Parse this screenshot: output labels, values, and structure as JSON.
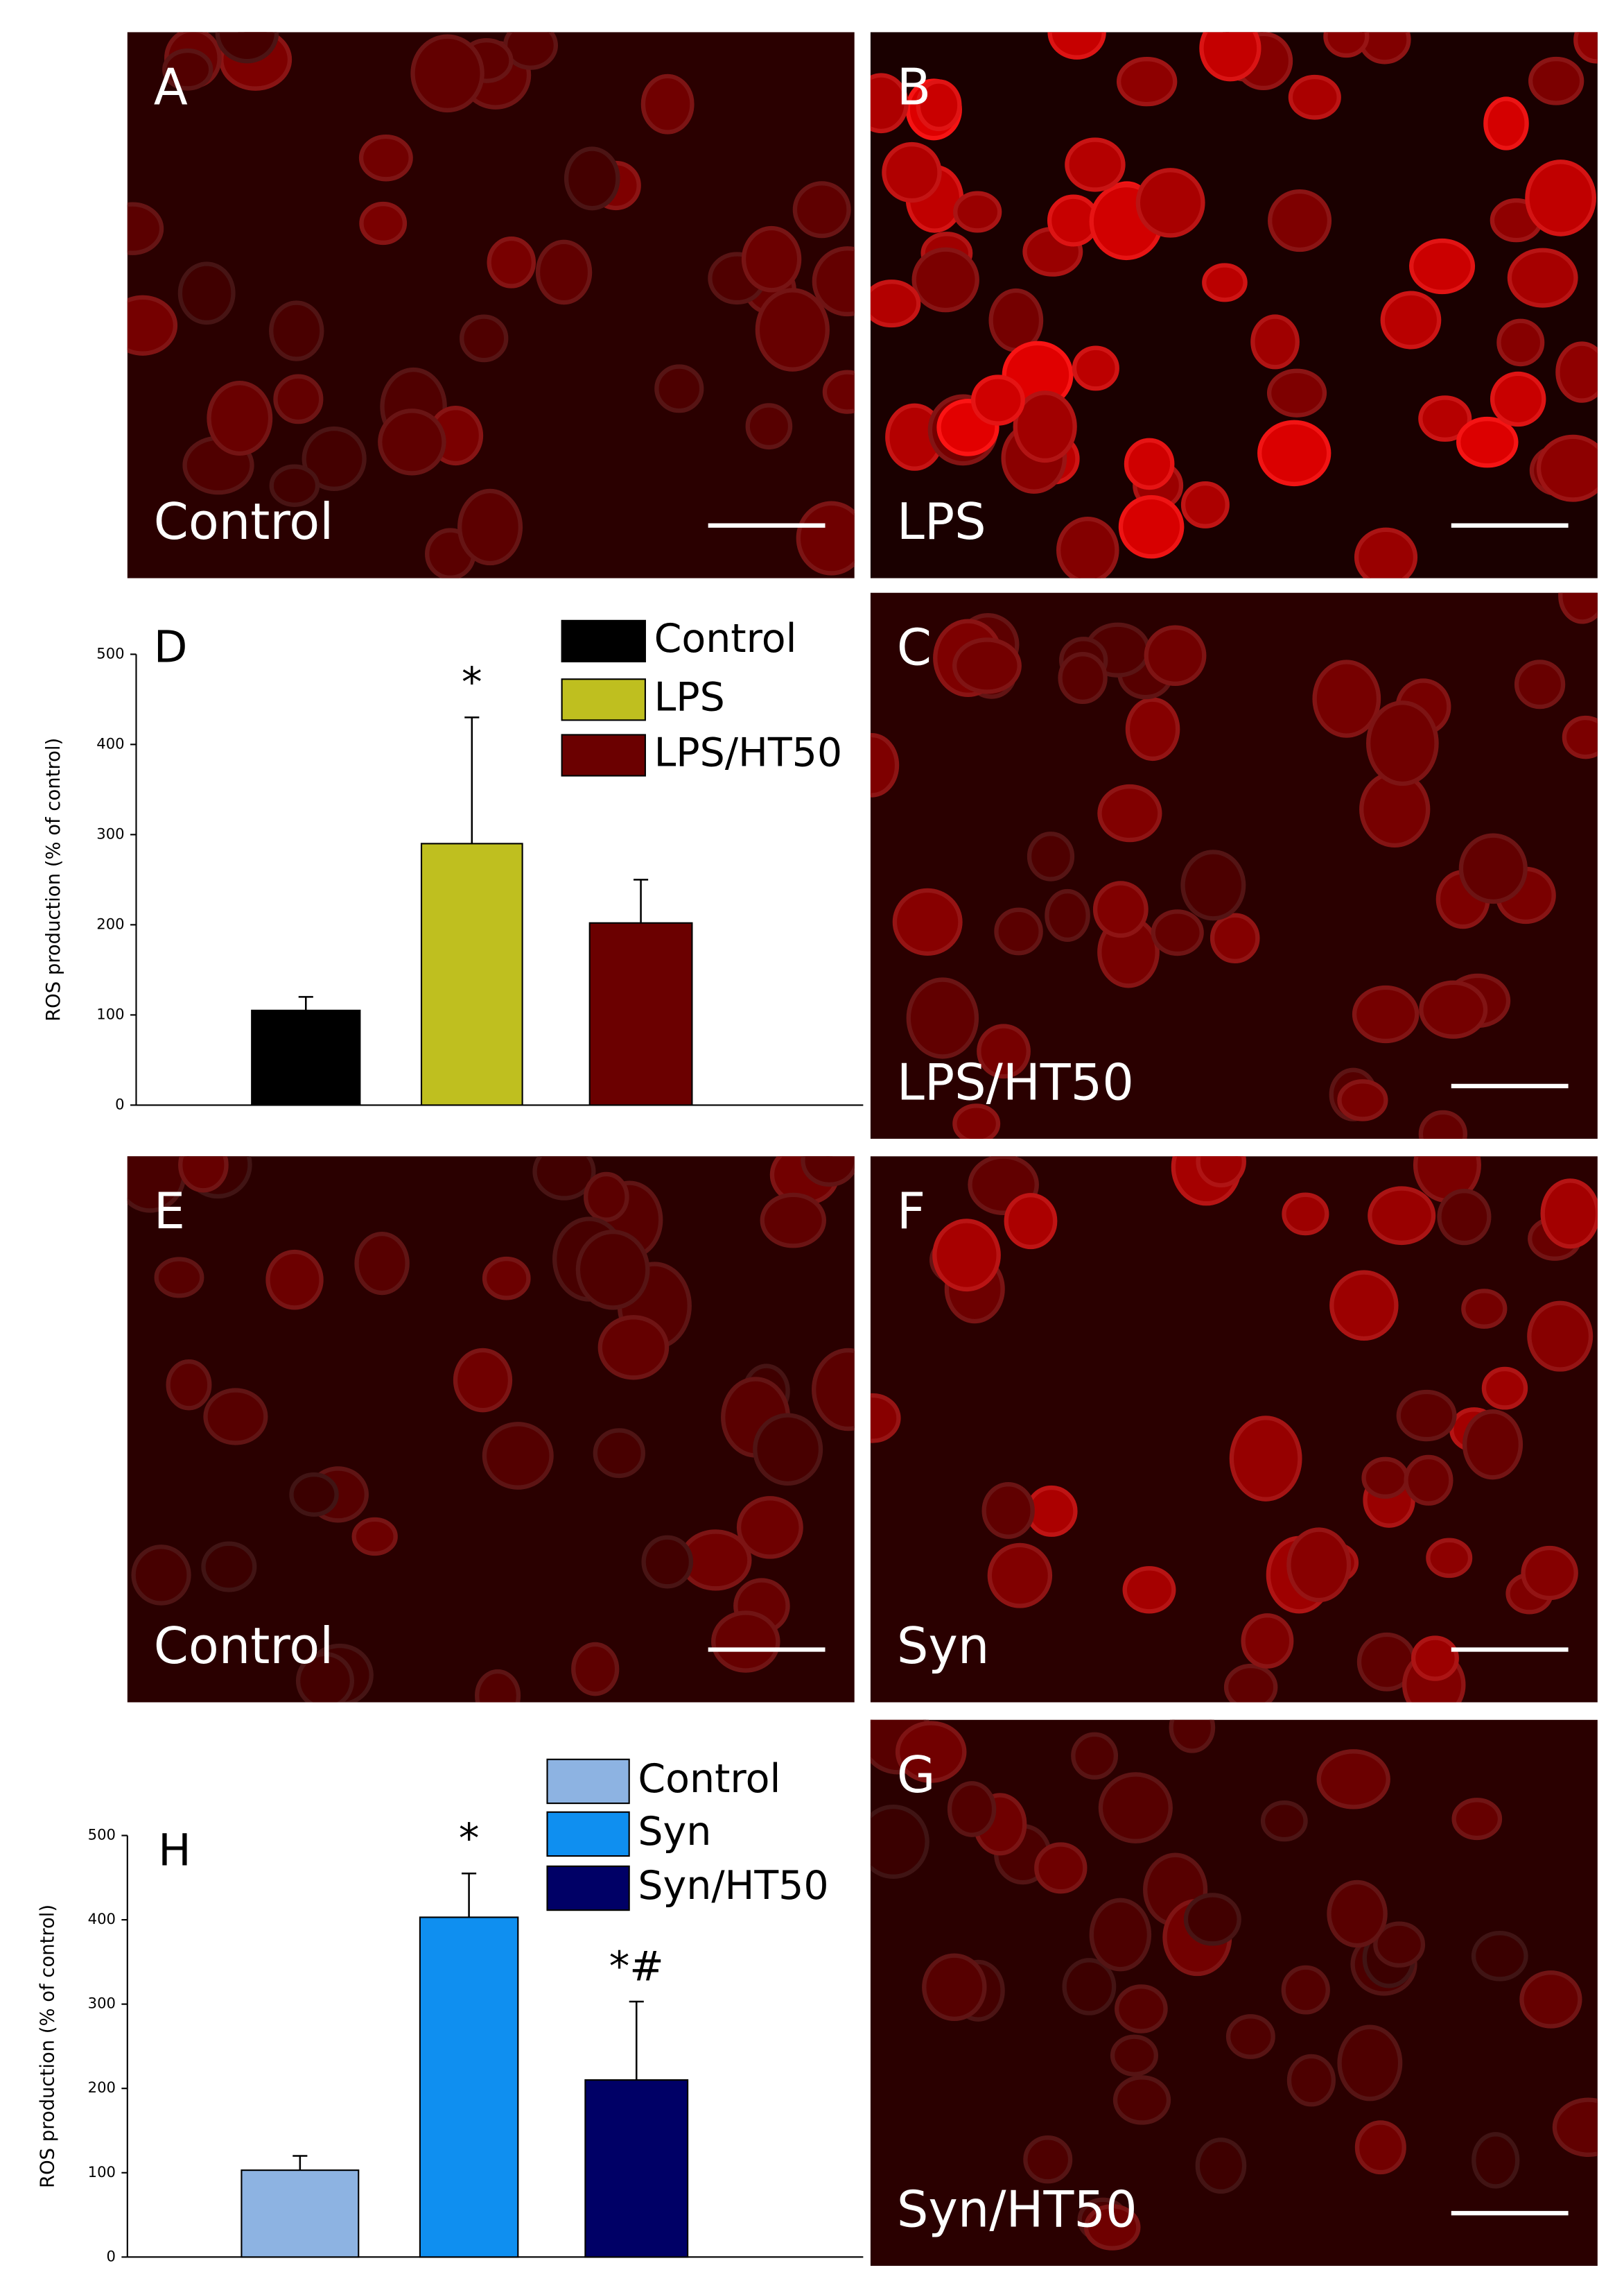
{
  "panels": [
    {
      "letter": "A",
      "label": "Control"
    },
    {
      "letter": "B",
      "label": "LPS"
    },
    {
      "letter": "C",
      "label": "LPS/HT50"
    },
    {
      "letter": "E",
      "label": "Control"
    },
    {
      "letter": "F",
      "label": "Syn"
    },
    {
      "letter": "G",
      "label": "Syn/HT50"
    }
  ],
  "chart_data": [
    {
      "type": "bar",
      "panel_label": "D",
      "y_label": "ROS production (% of control)",
      "categories": [
        "Control",
        "LPS",
        "LPS/HT50"
      ],
      "values": [
        105,
        290,
        202
      ],
      "errors": [
        15,
        140,
        48
      ],
      "colors": [
        "#000000",
        "#bfbf1f",
        "#6b0000"
      ],
      "annotations": [
        null,
        "*",
        null
      ],
      "ylim": [
        0,
        500
      ],
      "yticks": [
        0,
        100,
        200,
        300,
        400,
        500
      ]
    },
    {
      "type": "bar",
      "panel_label": "H",
      "y_label": "ROS production (% of control)",
      "categories": [
        "Control",
        "Syn",
        "Syn/HT50"
      ],
      "values": [
        103,
        403,
        210
      ],
      "errors": [
        17,
        52,
        93
      ],
      "colors": [
        "#8db3e2",
        "#0f8ff0",
        "#000066"
      ],
      "annotations": [
        null,
        "*",
        "*#"
      ],
      "ylim": [
        0,
        500
      ],
      "yticks": [
        0,
        100,
        200,
        300,
        400,
        500
      ]
    }
  ]
}
